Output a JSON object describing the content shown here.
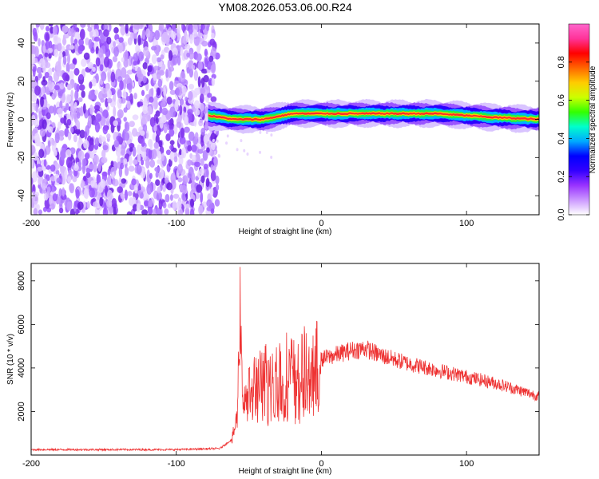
{
  "title": "YM08.2026.053.06.00.R24",
  "chart_data": [
    {
      "type": "heatmap",
      "xlabel": "Height of straight line (km)",
      "ylabel": "Frequency (Hz)",
      "xlim": [
        -200,
        150
      ],
      "ylim": [
        -50,
        50
      ],
      "xticks": [
        -200,
        -100,
        0,
        100
      ],
      "yticks": [
        -40,
        -20,
        0,
        20,
        40
      ],
      "noise_region_x": [
        -200,
        -75
      ],
      "signal_band": {
        "x_start": -78,
        "x_end": 150,
        "center_freq_points": [
          {
            "x": -78,
            "y": 2
          },
          {
            "x": -60,
            "y": 0
          },
          {
            "x": -40,
            "y": 0
          },
          {
            "x": -20,
            "y": 3
          },
          {
            "x": 0,
            "y": 3
          },
          {
            "x": 20,
            "y": 3
          },
          {
            "x": 40,
            "y": 3
          },
          {
            "x": 60,
            "y": 3
          },
          {
            "x": 80,
            "y": 3
          },
          {
            "x": 100,
            "y": 2
          },
          {
            "x": 120,
            "y": 1
          },
          {
            "x": 150,
            "y": 0
          }
        ]
      },
      "colorbar": {
        "label": "Normalized spectral amplitude",
        "range": [
          0,
          1
        ],
        "ticks": [
          0.0,
          0.2,
          0.4,
          0.6,
          0.8
        ],
        "colors": [
          "#ffffff",
          "#cc99ff",
          "#9933ff",
          "#3300ff",
          "#0000ff",
          "#00aaff",
          "#00ffcc",
          "#33ff00",
          "#ccff00",
          "#ffcc00",
          "#ff6600",
          "#ff0000",
          "#ff3399",
          "#ff66cc"
        ]
      }
    },
    {
      "type": "line",
      "xlabel": "Height of straight line (km)",
      "ylabel": "SNR (10 * v/v)",
      "xlim": [
        -200,
        150
      ],
      "ylim": [
        0,
        8800
      ],
      "xticks": [
        -200,
        -100,
        0,
        100
      ],
      "yticks": [
        2000,
        4000,
        6000,
        8000
      ],
      "series": [
        {
          "color": "#ee3333",
          "envelope": [
            {
              "x": -200,
              "y": 250
            },
            {
              "x": -100,
              "y": 250
            },
            {
              "x": -70,
              "y": 300
            },
            {
              "x": -62,
              "y": 700
            },
            {
              "x": -58,
              "y": 2200
            },
            {
              "x": -56,
              "y": 8700
            },
            {
              "x": -54,
              "y": 3000
            },
            {
              "x": -50,
              "y": 3000
            },
            {
              "x": -40,
              "y": 3600
            },
            {
              "x": -30,
              "y": 3800
            },
            {
              "x": -20,
              "y": 4000
            },
            {
              "x": -10,
              "y": 4100
            },
            {
              "x": 0,
              "y": 4400
            },
            {
              "x": 10,
              "y": 4600
            },
            {
              "x": 20,
              "y": 4800
            },
            {
              "x": 30,
              "y": 4900
            },
            {
              "x": 40,
              "y": 4600
            },
            {
              "x": 60,
              "y": 4200
            },
            {
              "x": 80,
              "y": 3900
            },
            {
              "x": 100,
              "y": 3600
            },
            {
              "x": 120,
              "y": 3300
            },
            {
              "x": 150,
              "y": 2700
            }
          ]
        }
      ]
    }
  ]
}
